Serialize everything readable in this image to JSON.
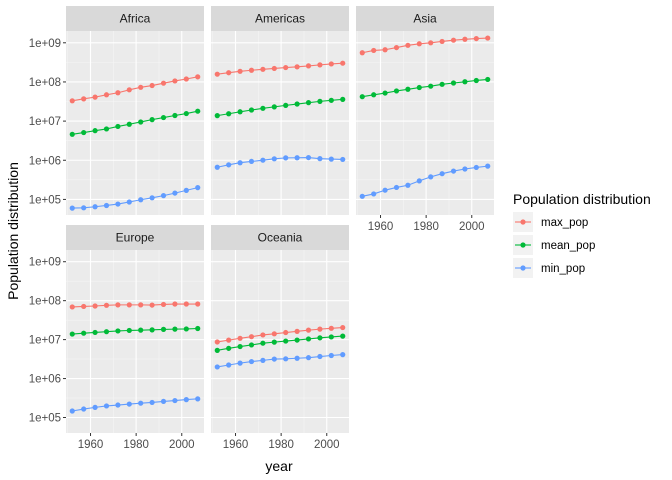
{
  "chart_data": {
    "type": "line",
    "scale_y": "log10",
    "ylabel": "Population distribution",
    "xlabel": "year",
    "x_ticks": [
      1960,
      1980,
      2000
    ],
    "y_ticks": [
      {
        "value": 100000,
        "label": "1e+05"
      },
      {
        "value": 1000000,
        "label": "1e+06"
      },
      {
        "value": 10000000,
        "label": "1e+07"
      },
      {
        "value": 100000000,
        "label": "1e+08"
      },
      {
        "value": 1000000000,
        "label": "1e+09"
      }
    ],
    "xlim": [
      1949.25,
      2009.75
    ],
    "ylim": [
      40000,
      2000000000
    ],
    "grid": true,
    "legend": {
      "title": "Population distribution",
      "position": "right",
      "items": [
        {
          "name": "max_pop",
          "color": "#F8766D"
        },
        {
          "name": "mean_pop",
          "color": "#00BA38"
        },
        {
          "name": "min_pop",
          "color": "#619CFF"
        }
      ]
    },
    "x": [
      1952,
      1957,
      1962,
      1967,
      1972,
      1977,
      1982,
      1987,
      1992,
      1997,
      2002,
      2007
    ],
    "panels": [
      {
        "name": "Africa",
        "series": {
          "max_pop": [
            33000000,
            37000000,
            41000000,
            47000000,
            53000000,
            63000000,
            73000000,
            81000000,
            93000000,
            106000000,
            119000000,
            135000000
          ],
          "mean_pop": [
            4600000,
            5100000,
            5700000,
            6300000,
            7300000,
            8300000,
            9500000,
            10900000,
            12300000,
            13900000,
            15600000,
            17900000
          ],
          "min_pop": [
            60000,
            61000,
            65000,
            70000,
            76000,
            86000,
            98000,
            110000,
            125000,
            145000,
            170000,
            200000
          ]
        }
      },
      {
        "name": "Americas",
        "series": {
          "max_pop": [
            158000000,
            172000000,
            187000000,
            199000000,
            210000000,
            221000000,
            233000000,
            243000000,
            257000000,
            273000000,
            288000000,
            301000000
          ],
          "mean_pop": [
            13800000,
            15400000,
            17300000,
            19200000,
            21200000,
            23100000,
            25200000,
            27300000,
            29600000,
            31900000,
            33900000,
            35900000
          ],
          "min_pop": [
            662000,
            764000,
            865000,
            935000,
            1003000,
            1090000,
            1150000,
            1160000,
            1170000,
            1100000,
            1070000,
            1050000
          ]
        }
      },
      {
        "name": "Asia",
        "series": {
          "max_pop": [
            556000000,
            637000000,
            665000000,
            754000000,
            862000000,
            943000000,
            1000000000,
            1084000000,
            1165000000,
            1230000000,
            1280000000,
            1319000000
          ],
          "mean_pop": [
            42000000,
            47000000,
            52000000,
            59000000,
            65000000,
            72000000,
            78000000,
            87000000,
            94000000,
            101000000,
            109000000,
            116000000
          ],
          "min_pop": [
            120000,
            138000,
            172000,
            202000,
            230000,
            297000,
            377000,
            454000,
            529000,
            598000,
            656000,
            708000
          ]
        }
      },
      {
        "name": "Europe",
        "series": {
          "max_pop": [
            69000000,
            71000000,
            73000000,
            76000000,
            78000000,
            78000000,
            78000000,
            77000000,
            80000000,
            82000000,
            82000000,
            82000000
          ],
          "mean_pop": [
            13900000,
            14600000,
            15300000,
            16000000,
            16700000,
            17200000,
            17500000,
            17800000,
            18300000,
            18600000,
            18800000,
            19300000
          ],
          "min_pop": [
            147000,
            165000,
            182000,
            198000,
            209000,
            221000,
            233000,
            244000,
            259000,
            272000,
            288000,
            301000
          ]
        }
      },
      {
        "name": "Oceania",
        "series": {
          "max_pop": [
            8700000,
            9700000,
            10800000,
            11900000,
            13200000,
            14100000,
            15200000,
            16300000,
            17500000,
            18600000,
            19500000,
            20400000
          ],
          "mean_pop": [
            5300000,
            5970000,
            6640000,
            7300000,
            8090000,
            8620000,
            9170000,
            9720000,
            10400000,
            11100000,
            11700000,
            12300000
          ],
          "min_pop": [
            1990000,
            2230000,
            2490000,
            2730000,
            2930000,
            3160000,
            3210000,
            3320000,
            3440000,
            3680000,
            3910000,
            4120000
          ]
        }
      }
    ]
  }
}
